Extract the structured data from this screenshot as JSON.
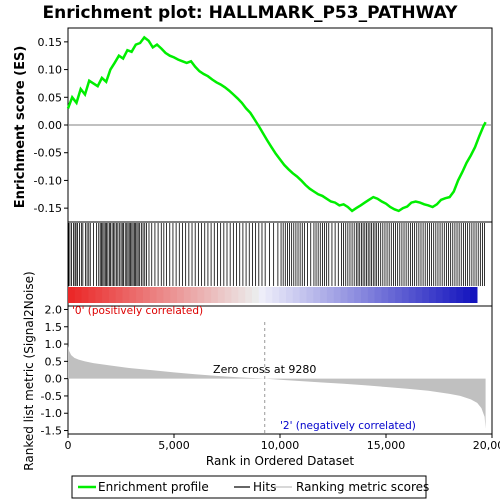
{
  "chart_data": [
    {
      "type": "line",
      "title": "Enrichment plot: HALLMARK_P53_PATHWAY",
      "ylabel": "Enrichment score (ES)",
      "xlim": [
        0,
        20000
      ],
      "ylim": [
        -0.175,
        0.175
      ],
      "yticks": [
        "0.15",
        "0.10",
        "0.05",
        "0.00",
        "-0.05",
        "-0.10",
        "-0.15"
      ],
      "ytick_values": [
        0.15,
        0.1,
        0.05,
        0.0,
        -0.05,
        -0.1,
        -0.15
      ],
      "series": [
        {
          "name": "Enrichment profile",
          "color": "#00ee00",
          "x": [
            0,
            200,
            400,
            600,
            800,
            1000,
            1200,
            1400,
            1600,
            1800,
            2000,
            2200,
            2400,
            2600,
            2800,
            3000,
            3200,
            3400,
            3600,
            3800,
            4000,
            4200,
            4400,
            4600,
            4800,
            5000,
            5200,
            5400,
            5600,
            5800,
            6000,
            6200,
            6400,
            6600,
            6800,
            7000,
            7200,
            7400,
            7600,
            7800,
            8000,
            8200,
            8400,
            8600,
            8800,
            9000,
            9200,
            9400,
            9600,
            9800,
            10000,
            10200,
            10400,
            10600,
            10800,
            11000,
            11200,
            11400,
            11600,
            11800,
            12000,
            12200,
            12400,
            12600,
            12800,
            13000,
            13200,
            13400,
            13600,
            13800,
            14000,
            14200,
            14400,
            14600,
            14800,
            15000,
            15200,
            15400,
            15600,
            15800,
            16000,
            16200,
            16400,
            16600,
            16800,
            17000,
            17200,
            17400,
            17600,
            17800,
            18000,
            18200,
            18400,
            18600,
            18800,
            19000,
            19200,
            19400,
            19600,
            19700
          ],
          "y": [
            0.03,
            0.05,
            0.04,
            0.065,
            0.055,
            0.08,
            0.075,
            0.07,
            0.085,
            0.078,
            0.1,
            0.112,
            0.125,
            0.12,
            0.135,
            0.132,
            0.145,
            0.148,
            0.158,
            0.152,
            0.14,
            0.145,
            0.138,
            0.13,
            0.125,
            0.122,
            0.118,
            0.115,
            0.112,
            0.115,
            0.105,
            0.097,
            0.092,
            0.088,
            0.082,
            0.077,
            0.073,
            0.068,
            0.062,
            0.055,
            0.048,
            0.04,
            0.03,
            0.022,
            0.01,
            -0.002,
            -0.015,
            -0.028,
            -0.04,
            -0.052,
            -0.062,
            -0.072,
            -0.08,
            -0.087,
            -0.093,
            -0.1,
            -0.108,
            -0.115,
            -0.12,
            -0.125,
            -0.128,
            -0.133,
            -0.138,
            -0.14,
            -0.145,
            -0.143,
            -0.148,
            -0.155,
            -0.15,
            -0.145,
            -0.14,
            -0.135,
            -0.13,
            -0.133,
            -0.138,
            -0.142,
            -0.148,
            -0.152,
            -0.155,
            -0.15,
            -0.147,
            -0.14,
            -0.138,
            -0.14,
            -0.143,
            -0.145,
            -0.148,
            -0.143,
            -0.135,
            -0.132,
            -0.13,
            -0.12,
            -0.1,
            -0.085,
            -0.068,
            -0.055,
            -0.04,
            -0.02,
            -0.002,
            0.005
          ]
        }
      ]
    },
    {
      "type": "hits",
      "xlim": [
        0,
        20000
      ],
      "hit_positions": [
        30,
        90,
        170,
        260,
        330,
        380,
        450,
        540,
        630,
        700,
        820,
        900,
        980,
        1050,
        1200,
        1350,
        1450,
        1520,
        1580,
        1640,
        1700,
        1760,
        1820,
        1880,
        1950,
        2010,
        2080,
        2150,
        2210,
        2280,
        2350,
        2420,
        2500,
        2560,
        2620,
        2700,
        2770,
        2830,
        2890,
        2950,
        3010,
        3070,
        3130,
        3190,
        3250,
        3310,
        3380,
        3460,
        3540,
        3620,
        3700,
        3820,
        3950,
        4100,
        4250,
        4400,
        4520,
        4650,
        4800,
        4950,
        5100,
        5250,
        5400,
        5550,
        5700,
        5850,
        6000,
        6150,
        6300,
        6450,
        6600,
        6750,
        6900,
        7050,
        7200,
        7350,
        7500,
        7650,
        7800,
        7950,
        8100,
        8250,
        8400,
        8550,
        8700,
        8850,
        9000,
        9150,
        9300,
        9500,
        9700,
        9900,
        10050,
        10150,
        10250,
        10350,
        10450,
        10550,
        10650,
        10750,
        10850,
        10950,
        11050,
        11150,
        11300,
        11450,
        11600,
        11700,
        11800,
        11900,
        12000,
        12100,
        12200,
        12300,
        12450,
        12600,
        12750,
        12900,
        13000,
        13100,
        13200,
        13300,
        13400,
        13500,
        13600,
        13680,
        13760,
        13840,
        13920,
        14000,
        14080,
        14160,
        14240,
        14320,
        14400,
        14480,
        14560,
        14650,
        14750,
        14850,
        14950,
        15050,
        15150,
        15250,
        15350,
        15450,
        15550,
        15650,
        15750,
        15850,
        15950,
        16050,
        16150,
        16250,
        16350,
        16450,
        16550,
        16650,
        16750,
        16850,
        16950,
        17050,
        17150,
        17250,
        17350,
        17450,
        17550,
        17650,
        17750,
        17850,
        17950,
        18050,
        18150,
        18250,
        18350,
        18450,
        18550,
        18650,
        18750,
        18850,
        18950,
        19050,
        19150,
        19250,
        19350,
        19450,
        19550,
        19650
      ]
    },
    {
      "type": "area",
      "ylabel": "Ranked list metric (Signal2Noise)",
      "xlabel": "Rank in Ordered Dataset",
      "xlim": [
        0,
        20000
      ],
      "ylim": [
        -1.6,
        2.1
      ],
      "xticks": [
        "0",
        "5,000",
        "10,000",
        "15,000",
        "20,000"
      ],
      "xtick_values": [
        0,
        5000,
        10000,
        15000,
        20000
      ],
      "yticks": [
        "2.0",
        "1.5",
        "1.0",
        "0.5",
        "0.0",
        "-0.5",
        "-1.0",
        "-1.5"
      ],
      "ytick_values": [
        2.0,
        1.5,
        1.0,
        0.5,
        0.0,
        -0.5,
        -1.0,
        -1.5
      ],
      "x": [
        0,
        50,
        150,
        300,
        500,
        800,
        1200,
        2000,
        3000,
        4000,
        5000,
        6000,
        7000,
        8000,
        9000,
        9280,
        10000,
        11000,
        12000,
        13000,
        14000,
        15000,
        16000,
        17000,
        18000,
        18500,
        19000,
        19300,
        19500,
        19650,
        19700
      ],
      "y": [
        0.95,
        0.8,
        0.68,
        0.6,
        0.55,
        0.5,
        0.45,
        0.38,
        0.3,
        0.24,
        0.18,
        0.13,
        0.08,
        0.04,
        0.01,
        0.0,
        -0.03,
        -0.07,
        -0.11,
        -0.15,
        -0.19,
        -0.24,
        -0.29,
        -0.35,
        -0.44,
        -0.5,
        -0.6,
        -0.7,
        -0.85,
        -1.1,
        -1.45
      ],
      "zero_cross_label": "Zero cross at 9280",
      "zero_cross": 9280,
      "pos_label": "'0' (positively correlated)",
      "neg_label": "'2' (negatively correlated)"
    }
  ],
  "legend": {
    "items": [
      {
        "label": "Enrichment profile",
        "color": "#00ee00"
      },
      {
        "label": "Hits",
        "color": "#000000"
      },
      {
        "label": "Ranking metric scores",
        "color": "#c0c0c0"
      }
    ]
  },
  "colors": {
    "pos": "#ff0000",
    "neg": "#0000ff",
    "metric_fill": "#c0c0c0",
    "zero_line": "#999999"
  }
}
